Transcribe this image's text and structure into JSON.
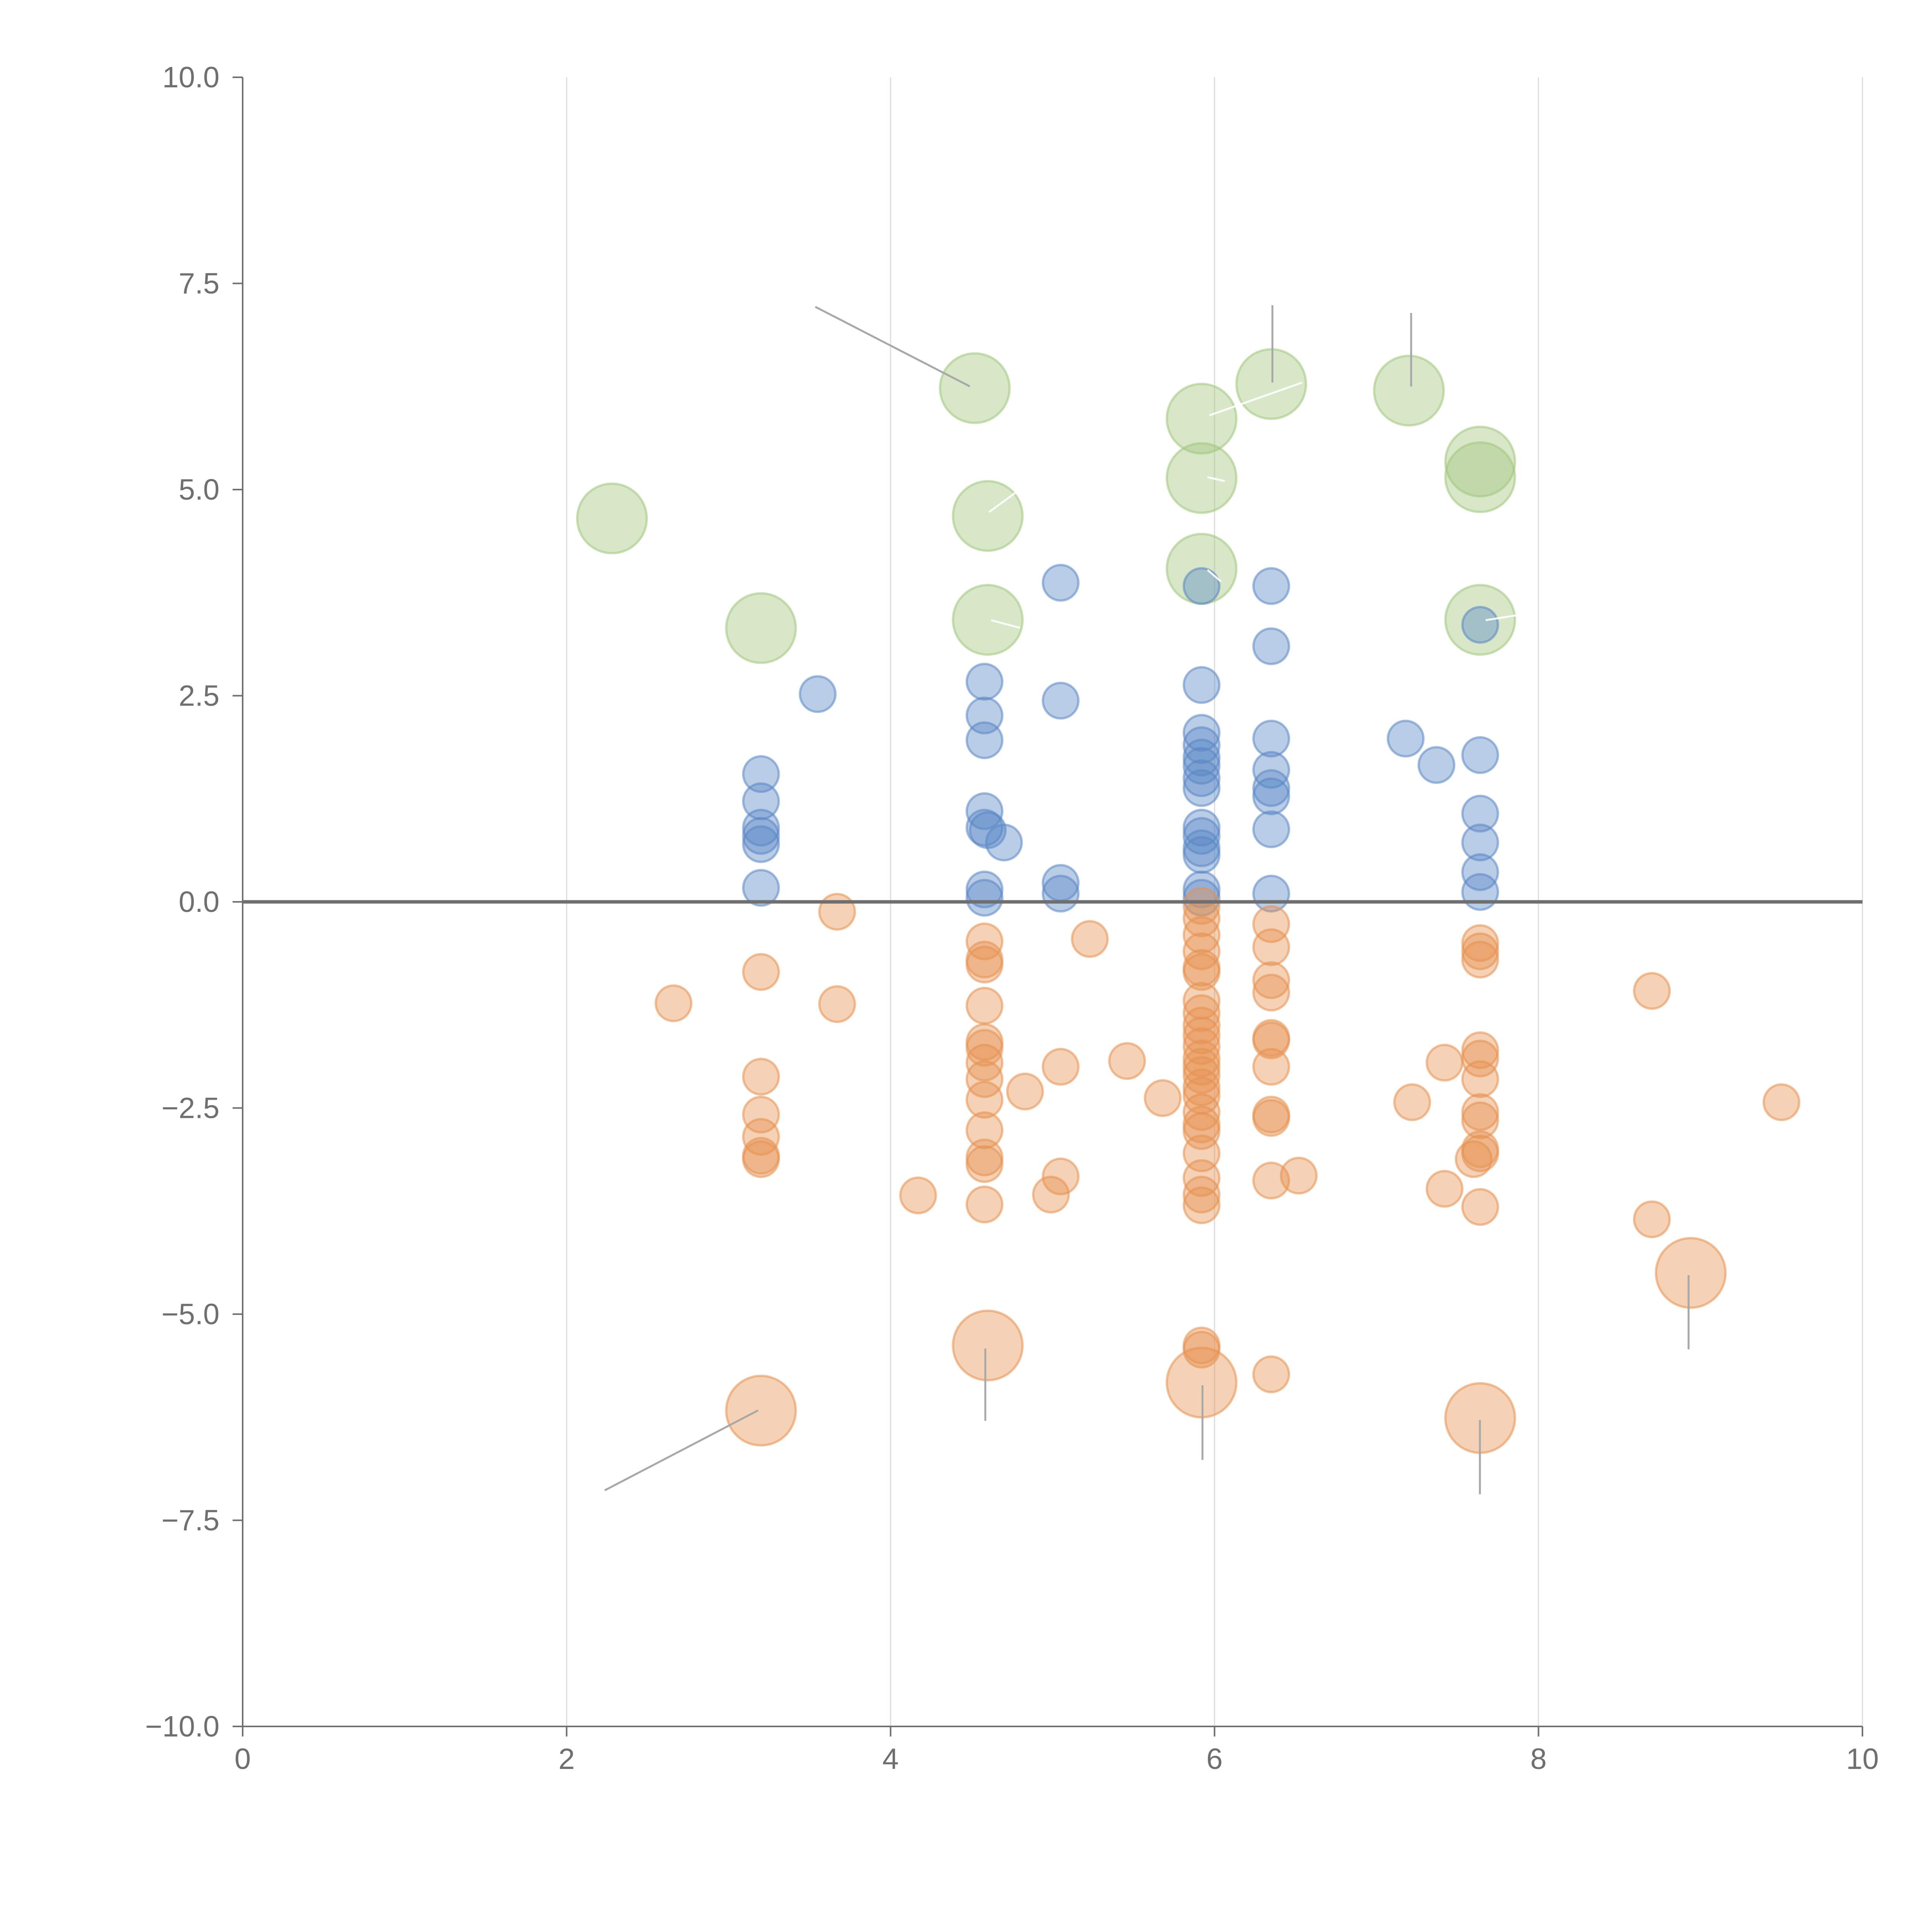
{
  "chart_data": {
    "type": "scatter",
    "title": "",
    "xlabel": "",
    "ylabel": "",
    "xlim": [
      0,
      10
    ],
    "ylim": [
      -10,
      10
    ],
    "grid": "vertical",
    "x_ticks": [
      "0",
      "2",
      "4",
      "6",
      "8",
      "10"
    ],
    "y_ticks": [
      "10.0",
      "7.5",
      "5.0",
      "2.5",
      "0.0",
      "−2.5",
      "−5.0",
      "−7.5",
      "−10.0"
    ],
    "colors": {
      "blue": "#5b87c5",
      "orange": "#e69150",
      "green": "#a3c67d",
      "axis": "#6f6f6f",
      "grid": "#dddddd"
    },
    "series": [
      {
        "name": "green",
        "color": "#a3c67d",
        "size": "large",
        "points": [
          [
            2.28,
            4.65
          ],
          [
            3.2,
            3.32
          ],
          [
            4.52,
            6.23
          ],
          [
            4.6,
            4.68
          ],
          [
            4.6,
            3.42
          ],
          [
            5.92,
            5.86
          ],
          [
            5.92,
            5.14
          ],
          [
            5.92,
            4.04
          ],
          [
            6.35,
            6.28
          ],
          [
            7.2,
            6.2
          ],
          [
            7.64,
            5.34
          ],
          [
            7.64,
            5.15
          ],
          [
            7.64,
            3.42
          ]
        ]
      },
      {
        "name": "blue",
        "color": "#5b87c5",
        "size": "small",
        "points": [
          [
            3.2,
            1.55
          ],
          [
            3.2,
            1.22
          ],
          [
            3.2,
            0.9
          ],
          [
            3.2,
            0.8
          ],
          [
            3.2,
            0.7
          ],
          [
            3.2,
            0.17
          ],
          [
            3.55,
            2.52
          ],
          [
            4.58,
            2.67
          ],
          [
            4.58,
            2.26
          ],
          [
            4.58,
            1.96
          ],
          [
            4.58,
            1.1
          ],
          [
            4.58,
            0.9
          ],
          [
            4.6,
            0.87
          ],
          [
            4.7,
            0.72
          ],
          [
            4.58,
            0.15
          ],
          [
            4.58,
            0.05
          ],
          [
            5.05,
            3.87
          ],
          [
            5.05,
            2.44
          ],
          [
            5.05,
            0.23
          ],
          [
            5.05,
            0.1
          ],
          [
            5.92,
            3.83
          ],
          [
            5.92,
            2.63
          ],
          [
            5.92,
            2.05
          ],
          [
            5.92,
            1.9
          ],
          [
            5.92,
            1.75
          ],
          [
            5.92,
            1.65
          ],
          [
            5.92,
            1.5
          ],
          [
            5.92,
            1.38
          ],
          [
            5.92,
            0.9
          ],
          [
            5.92,
            0.8
          ],
          [
            5.92,
            0.65
          ],
          [
            5.92,
            0.57
          ],
          [
            5.92,
            0.15
          ],
          [
            5.92,
            0.05
          ],
          [
            6.35,
            3.83
          ],
          [
            6.35,
            3.1
          ],
          [
            6.35,
            1.98
          ],
          [
            6.35,
            1.6
          ],
          [
            6.35,
            1.38
          ],
          [
            6.35,
            1.28
          ],
          [
            6.35,
            0.88
          ],
          [
            6.35,
            0.1
          ],
          [
            7.18,
            1.98
          ],
          [
            7.37,
            1.66
          ],
          [
            7.64,
            3.36
          ],
          [
            7.64,
            1.78
          ],
          [
            7.64,
            1.07
          ],
          [
            7.64,
            0.72
          ],
          [
            7.64,
            0.36
          ],
          [
            7.64,
            0.12
          ]
        ]
      },
      {
        "name": "orange",
        "color": "#e69150",
        "size": "small",
        "points": [
          [
            2.66,
            -1.23
          ],
          [
            3.2,
            -0.85
          ],
          [
            3.2,
            -2.12
          ],
          [
            3.2,
            -2.58
          ],
          [
            3.2,
            -2.85
          ],
          [
            3.2,
            -3.08
          ],
          [
            3.2,
            -3.12
          ],
          [
            3.67,
            -0.12
          ],
          [
            3.67,
            -1.24
          ],
          [
            4.17,
            -3.56
          ],
          [
            4.58,
            -0.48
          ],
          [
            4.58,
            -0.7
          ],
          [
            4.58,
            -0.76
          ],
          [
            4.58,
            -1.26
          ],
          [
            4.58,
            -1.7
          ],
          [
            4.58,
            -1.77
          ],
          [
            4.58,
            -1.95
          ],
          [
            4.58,
            -2.15
          ],
          [
            4.58,
            -2.4
          ],
          [
            4.58,
            -2.77
          ],
          [
            4.58,
            -3.1
          ],
          [
            4.58,
            -3.18
          ],
          [
            4.58,
            -3.67
          ],
          [
            4.83,
            -2.3
          ],
          [
            5.05,
            -2.0
          ],
          [
            5.05,
            -3.33
          ],
          [
            4.99,
            -3.55
          ],
          [
            5.23,
            -0.45
          ],
          [
            5.46,
            -1.93
          ],
          [
            5.68,
            -2.38
          ],
          [
            5.92,
            -0.05
          ],
          [
            5.92,
            -0.2
          ],
          [
            5.92,
            -0.4
          ],
          [
            5.92,
            -0.6
          ],
          [
            5.92,
            -0.8
          ],
          [
            5.92,
            -0.85
          ],
          [
            5.92,
            -1.2
          ],
          [
            5.92,
            -1.35
          ],
          [
            5.92,
            -1.5
          ],
          [
            5.92,
            -1.62
          ],
          [
            5.92,
            -1.75
          ],
          [
            5.92,
            -1.9
          ],
          [
            5.92,
            -2.0
          ],
          [
            5.92,
            -2.1
          ],
          [
            5.92,
            -2.25
          ],
          [
            5.92,
            -2.35
          ],
          [
            5.92,
            -2.55
          ],
          [
            5.92,
            -2.7
          ],
          [
            5.92,
            -2.78
          ],
          [
            5.92,
            -3.05
          ],
          [
            5.92,
            -3.35
          ],
          [
            5.92,
            -3.55
          ],
          [
            5.92,
            -3.68
          ],
          [
            5.92,
            -5.38
          ],
          [
            5.92,
            -5.43
          ],
          [
            6.35,
            -0.27
          ],
          [
            6.35,
            -0.55
          ],
          [
            6.35,
            -0.95
          ],
          [
            6.35,
            -1.1
          ],
          [
            6.35,
            -1.65
          ],
          [
            6.35,
            -1.68
          ],
          [
            6.35,
            -2.0
          ],
          [
            6.35,
            -2.58
          ],
          [
            6.35,
            -2.62
          ],
          [
            6.35,
            -3.38
          ],
          [
            6.35,
            -5.73
          ],
          [
            6.52,
            -3.32
          ],
          [
            7.22,
            -2.43
          ],
          [
            7.42,
            -1.95
          ],
          [
            7.42,
            -3.48
          ],
          [
            7.64,
            -0.5
          ],
          [
            7.64,
            -0.6
          ],
          [
            7.64,
            -0.7
          ],
          [
            7.64,
            -1.8
          ],
          [
            7.64,
            -1.9
          ],
          [
            7.64,
            -2.15
          ],
          [
            7.64,
            -2.55
          ],
          [
            7.64,
            -2.65
          ],
          [
            7.64,
            -3.0
          ],
          [
            7.64,
            -3.05
          ],
          [
            7.6,
            -3.12
          ],
          [
            7.64,
            -3.7
          ],
          [
            8.7,
            -1.08
          ],
          [
            8.7,
            -3.85
          ],
          [
            9.5,
            -2.43
          ]
        ]
      },
      {
        "name": "orange-large",
        "color": "#e69150",
        "size": "large",
        "points": [
          [
            3.2,
            -6.17
          ],
          [
            4.6,
            -5.38
          ],
          [
            5.92,
            -5.83
          ],
          [
            7.64,
            -6.26
          ],
          [
            8.94,
            -4.5
          ]
        ]
      }
    ]
  }
}
